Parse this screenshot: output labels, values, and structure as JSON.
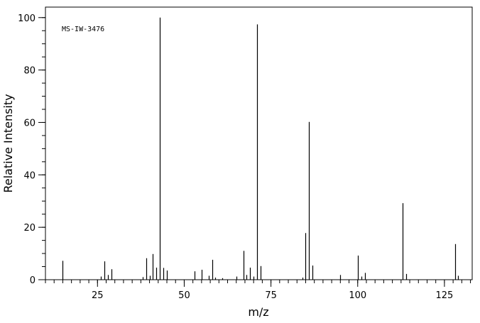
{
  "chart_data": {
    "type": "bar",
    "subtype": "mass-spectrum-stick",
    "annotation": "MS-IW-3476",
    "xlabel": "m/z",
    "ylabel": "Relative Intensity",
    "xlim": [
      10,
      133
    ],
    "ylim": [
      0,
      104
    ],
    "xticks": [
      25,
      50,
      75,
      100,
      125
    ],
    "yticks": [
      0,
      20,
      40,
      60,
      80,
      100
    ],
    "xminor_step": 2.5,
    "yminor_step": 5,
    "grid": false,
    "legend": "none",
    "peaks": [
      {
        "mz": 15,
        "intensity": 7.2
      },
      {
        "mz": 26,
        "intensity": 1.2
      },
      {
        "mz": 27,
        "intensity": 7.0
      },
      {
        "mz": 28,
        "intensity": 1.8
      },
      {
        "mz": 29,
        "intensity": 4.0
      },
      {
        "mz": 38,
        "intensity": 1.0
      },
      {
        "mz": 39,
        "intensity": 8.2
      },
      {
        "mz": 40,
        "intensity": 1.5
      },
      {
        "mz": 41,
        "intensity": 9.8
      },
      {
        "mz": 42,
        "intensity": 4.6
      },
      {
        "mz": 43,
        "intensity": 100
      },
      {
        "mz": 44,
        "intensity": 4.5
      },
      {
        "mz": 45,
        "intensity": 3.5
      },
      {
        "mz": 53,
        "intensity": 3.2
      },
      {
        "mz": 55,
        "intensity": 3.8
      },
      {
        "mz": 57,
        "intensity": 1.5
      },
      {
        "mz": 58,
        "intensity": 7.6
      },
      {
        "mz": 59,
        "intensity": 0.8
      },
      {
        "mz": 61,
        "intensity": 0.6
      },
      {
        "mz": 65,
        "intensity": 1.2
      },
      {
        "mz": 67,
        "intensity": 11.0
      },
      {
        "mz": 68,
        "intensity": 1.8
      },
      {
        "mz": 69,
        "intensity": 4.6
      },
      {
        "mz": 70,
        "intensity": 1.2
      },
      {
        "mz": 71,
        "intensity": 97.4
      },
      {
        "mz": 72,
        "intensity": 5.2
      },
      {
        "mz": 84,
        "intensity": 0.8
      },
      {
        "mz": 85,
        "intensity": 17.8
      },
      {
        "mz": 86,
        "intensity": 60.2
      },
      {
        "mz": 87,
        "intensity": 5.4
      },
      {
        "mz": 95,
        "intensity": 1.8
      },
      {
        "mz": 100,
        "intensity": 9.2
      },
      {
        "mz": 101,
        "intensity": 1.2
      },
      {
        "mz": 102,
        "intensity": 2.6
      },
      {
        "mz": 113,
        "intensity": 29.2
      },
      {
        "mz": 114,
        "intensity": 2.2
      },
      {
        "mz": 128,
        "intensity": 13.6
      },
      {
        "mz": 129,
        "intensity": 1.5
      }
    ]
  }
}
